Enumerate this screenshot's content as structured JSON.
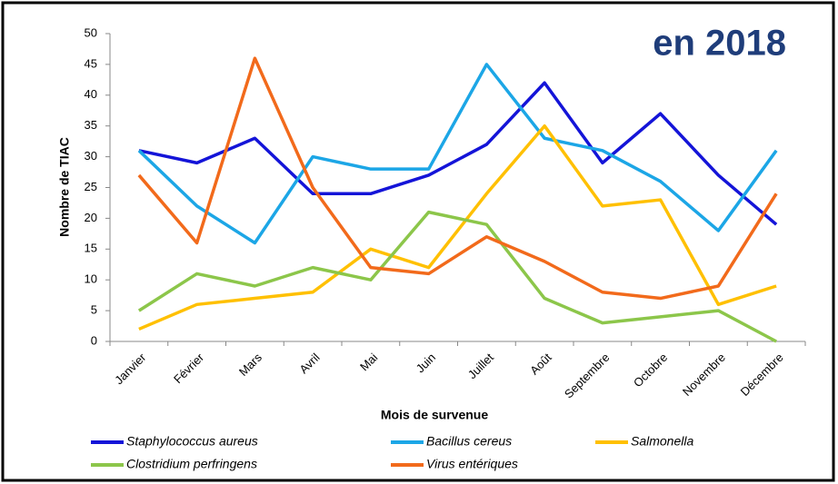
{
  "chart_data": {
    "type": "line",
    "annotation": "en 2018",
    "x_label": "Mois de survenue",
    "y_label": "Nombre de TIAC",
    "categories": [
      "Janvier",
      "Février",
      "Mars",
      "Avril",
      "Mai",
      "Juin",
      "Juillet",
      "Août",
      "Septembre",
      "Octobre",
      "Novembre",
      "Décembre"
    ],
    "series": [
      {
        "name": "Staphylococcus aureus",
        "color": "#1414d8",
        "values": [
          31,
          29,
          33,
          24,
          24,
          27,
          32,
          42,
          29,
          37,
          27,
          19
        ]
      },
      {
        "name": "Bacillus cereus",
        "color": "#1ca6e6",
        "values": [
          31,
          22,
          16,
          30,
          28,
          28,
          45,
          33,
          31,
          26,
          18,
          31
        ]
      },
      {
        "name": "Salmonella",
        "color": "#ffc000",
        "values": [
          2,
          6,
          7,
          8,
          15,
          12,
          24,
          35,
          22,
          23,
          6,
          9
        ]
      },
      {
        "name": "Clostridium perfringens",
        "color": "#8cc64a",
        "values": [
          5,
          11,
          9,
          12,
          10,
          21,
          19,
          7,
          3,
          4,
          5,
          0
        ]
      },
      {
        "name": "Virus entériques",
        "color": "#f26a1b",
        "values": [
          27,
          16,
          46,
          25,
          12,
          11,
          17,
          13,
          8,
          7,
          9,
          24
        ]
      }
    ],
    "ylim": [
      0,
      50
    ],
    "yticks": [
      0,
      5,
      10,
      15,
      20,
      25,
      30,
      35,
      40,
      45,
      50
    ]
  }
}
